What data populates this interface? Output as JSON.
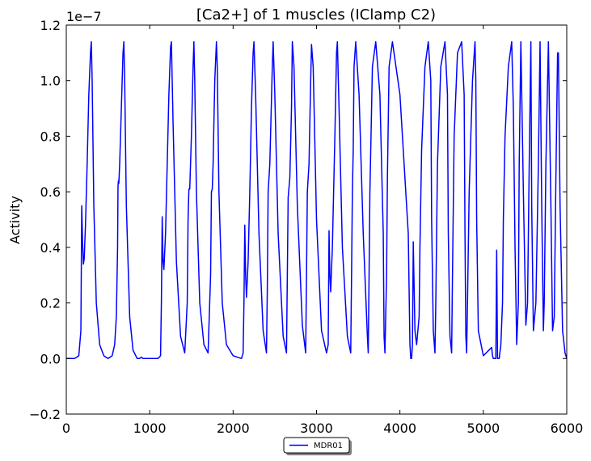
{
  "chart_data": {
    "type": "line",
    "title": "[Ca2+] of 1 muscles (IClamp C2)",
    "xlabel": "",
    "ylabel": "Activity",
    "y_offset_label": "1e−7",
    "xlim": [
      0,
      6000
    ],
    "ylim": [
      -0.2,
      1.2
    ],
    "y_scale_factor": 1e-07,
    "grid": false,
    "legend_position": "below-center",
    "x_ticks": [
      0,
      1000,
      2000,
      3000,
      4000,
      5000,
      6000
    ],
    "x_tick_labels": [
      "0",
      "1000",
      "2000",
      "3000",
      "4000",
      "5000",
      "6000"
    ],
    "y_ticks": [
      -0.2,
      0.0,
      0.2,
      0.4,
      0.6,
      0.8,
      1.0,
      1.2
    ],
    "y_tick_labels": [
      "−0.2",
      "0.0",
      "0.2",
      "0.4",
      "0.6",
      "0.8",
      "1.0",
      "1.2"
    ],
    "series": [
      {
        "name": "MDR01",
        "color": "#0000ff",
        "x": [
          0,
          100,
          150,
          175,
          185,
          195,
          205,
          215,
          230,
          250,
          270,
          290,
          300,
          310,
          330,
          360,
          400,
          450,
          500,
          550,
          580,
          600,
          615,
          620,
          625,
          630,
          640,
          660,
          680,
          690,
          700,
          720,
          760,
          800,
          850,
          880,
          900,
          920,
          950,
          1000,
          1100,
          1130,
          1140,
          1150,
          1160,
          1170,
          1190,
          1210,
          1230,
          1250,
          1260,
          1280,
          1320,
          1370,
          1420,
          1450,
          1460,
          1470,
          1480,
          1500,
          1520,
          1530,
          1540,
          1560,
          1600,
          1650,
          1700,
          1730,
          1740,
          1750,
          1760,
          1780,
          1800,
          1810,
          1830,
          1870,
          1920,
          2000,
          2100,
          2120,
          2130,
          2140,
          2150,
          2160,
          2180,
          2200,
          2220,
          2240,
          2250,
          2270,
          2310,
          2360,
          2400,
          2410,
          2420,
          2440,
          2470,
          2480,
          2500,
          2540,
          2600,
          2640,
          2650,
          2660,
          2680,
          2700,
          2710,
          2730,
          2770,
          2830,
          2870,
          2880,
          2890,
          2910,
          2930,
          2940,
          2960,
          3000,
          3060,
          3120,
          3140,
          3150,
          3160,
          3170,
          3190,
          3220,
          3240,
          3250,
          3270,
          3310,
          3370,
          3410,
          3420,
          3430,
          3440,
          3450,
          3470,
          3510,
          3560,
          3610,
          3620,
          3630,
          3640,
          3650,
          3670,
          3710,
          3760,
          3800,
          3810,
          3820,
          3840,
          3850,
          3870,
          3910,
          4000,
          4100,
          4120,
          4130,
          4140,
          4150,
          4160,
          4180,
          4200,
          4230,
          4240,
          4260,
          4300,
          4340,
          4370,
          4380,
          4400,
          4420,
          4430,
          4450,
          4490,
          4540,
          4570,
          4580,
          4600,
          4620,
          4630,
          4650,
          4690,
          4740,
          4770,
          4780,
          4790,
          4800,
          4810,
          4830,
          4870,
          4900,
          4910,
          4920,
          4940,
          5000,
          5100,
          5110,
          5120,
          5130,
          5140,
          5150,
          5160,
          5170,
          5190,
          5210,
          5230,
          5240,
          5260,
          5300,
          5340,
          5360,
          5380,
          5400,
          5420,
          5430,
          5450,
          5480,
          5510,
          5530,
          5550,
          5570,
          5580,
          5600,
          5630,
          5660,
          5680,
          5700,
          5720,
          5730,
          5750,
          5780,
          5810,
          5830,
          5850,
          5870,
          5890,
          5900,
          5920,
          5950,
          5980,
          6000
        ],
        "values": [
          0.0,
          0.0,
          0.01,
          0.1,
          0.55,
          0.42,
          0.34,
          0.36,
          0.48,
          0.7,
          0.95,
          1.1,
          1.14,
          1.0,
          0.55,
          0.2,
          0.05,
          0.01,
          0.0,
          0.01,
          0.05,
          0.15,
          0.4,
          0.62,
          0.64,
          0.63,
          0.7,
          0.9,
          1.1,
          1.14,
          1.0,
          0.55,
          0.15,
          0.03,
          0.0,
          0.0,
          0.005,
          0.0,
          0.0,
          0.0,
          0.0,
          0.01,
          0.2,
          0.51,
          0.35,
          0.32,
          0.45,
          0.7,
          0.95,
          1.12,
          1.14,
          0.85,
          0.35,
          0.08,
          0.02,
          0.2,
          0.5,
          0.61,
          0.61,
          0.8,
          1.05,
          1.14,
          1.0,
          0.6,
          0.2,
          0.05,
          0.02,
          0.3,
          0.6,
          0.61,
          0.7,
          1.0,
          1.14,
          1.05,
          0.6,
          0.2,
          0.05,
          0.01,
          0.0,
          0.02,
          0.2,
          0.48,
          0.3,
          0.22,
          0.35,
          0.6,
          0.9,
          1.1,
          1.14,
          0.95,
          0.45,
          0.1,
          0.02,
          0.25,
          0.6,
          0.7,
          1.05,
          1.14,
          0.95,
          0.45,
          0.08,
          0.02,
          0.3,
          0.58,
          0.65,
          0.9,
          1.14,
          1.05,
          0.55,
          0.12,
          0.02,
          0.3,
          0.6,
          0.7,
          1.0,
          1.13,
          1.05,
          0.5,
          0.1,
          0.02,
          0.05,
          0.46,
          0.3,
          0.24,
          0.4,
          0.8,
          1.1,
          1.14,
          0.9,
          0.4,
          0.08,
          0.02,
          0.3,
          0.6,
          0.75,
          1.05,
          1.14,
          0.95,
          0.45,
          0.08,
          0.02,
          0.3,
          0.6,
          0.75,
          1.05,
          1.14,
          0.95,
          0.45,
          0.08,
          0.02,
          0.3,
          0.65,
          1.05,
          1.14,
          0.95,
          0.45,
          0.05,
          0.0,
          0.0,
          0.05,
          0.42,
          0.1,
          0.05,
          0.15,
          0.4,
          0.75,
          1.05,
          1.14,
          1.0,
          0.5,
          0.1,
          0.02,
          0.2,
          0.7,
          1.05,
          1.14,
          0.95,
          0.45,
          0.08,
          0.02,
          0.3,
          0.8,
          1.1,
          1.14,
          0.95,
          0.45,
          0.08,
          0.02,
          0.2,
          0.6,
          1.0,
          1.14,
          1.0,
          0.5,
          0.1,
          0.01,
          0.04,
          0.01,
          0.0,
          0.0,
          0.0,
          0.0,
          0.39,
          0.0,
          0.0,
          0.05,
          0.2,
          0.5,
          0.8,
          1.05,
          1.14,
          0.9,
          0.4,
          0.05,
          0.2,
          0.7,
          1.14,
          0.6,
          0.12,
          0.2,
          0.7,
          1.14,
          0.55,
          0.1,
          0.2,
          0.7,
          1.14,
          0.55,
          0.1,
          0.2,
          0.7,
          1.14,
          0.55,
          0.1,
          0.15,
          0.65,
          1.1,
          1.1,
          0.55,
          0.1,
          0.02,
          0.0
        ]
      }
    ]
  }
}
